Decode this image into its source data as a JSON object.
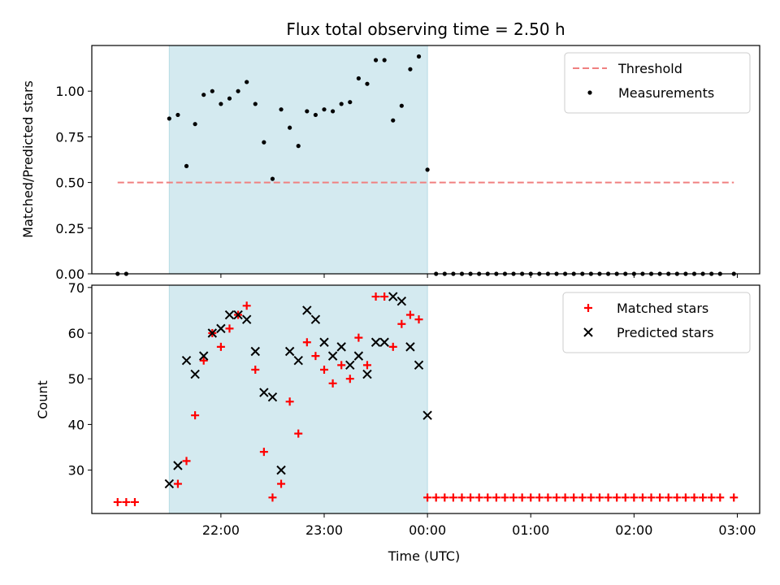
{
  "chart_data": {
    "title": "Flux total observing time = 2.50 h",
    "xlabel": "Time (UTC)",
    "x_tick_labels": [
      "22:00",
      "23:00",
      "00:00",
      "01:00",
      "02:00",
      "03:00"
    ],
    "x_tick_minutes": [
      1320,
      1380,
      1440,
      1500,
      1560,
      1620
    ],
    "xlim_minutes": [
      1245,
      1633
    ],
    "observing_window_minutes": [
      1290,
      1440
    ],
    "observing_window_color": "#d4eaf0",
    "charts": [
      {
        "type": "scatter",
        "ylabel": "Matched/Predicted stars",
        "ylim": [
          0,
          1.25
        ],
        "y_ticks": [
          0,
          0.25,
          0.5,
          0.75,
          1.0
        ],
        "y_tick_labels": [
          "0.00",
          "0.25",
          "0.50",
          "0.75",
          "1.00"
        ],
        "legend_position": "top-right",
        "threshold": {
          "name": "Threshold",
          "y": 0.5,
          "x_range_minutes": [
            1260,
            1618
          ],
          "color": "#f08080",
          "style": "dashed"
        },
        "series": [
          {
            "name": "Measurements",
            "marker": "dot",
            "color": "#000000",
            "x_minutes": [
              1260,
              1265,
              1290,
              1295,
              1300,
              1305,
              1310,
              1315,
              1320,
              1325,
              1330,
              1335,
              1340,
              1345,
              1350,
              1355,
              1360,
              1365,
              1370,
              1375,
              1380,
              1385,
              1390,
              1395,
              1400,
              1405,
              1410,
              1415,
              1420,
              1425,
              1430,
              1435,
              1440,
              1445,
              1450,
              1455,
              1460,
              1465,
              1470,
              1475,
              1480,
              1485,
              1490,
              1495,
              1500,
              1505,
              1510,
              1515,
              1520,
              1525,
              1530,
              1535,
              1540,
              1545,
              1550,
              1555,
              1560,
              1565,
              1570,
              1575,
              1580,
              1585,
              1590,
              1595,
              1600,
              1605,
              1610,
              1618
            ],
            "y": [
              0,
              0,
              0.85,
              0.87,
              0.59,
              0.82,
              0.98,
              1.0,
              0.93,
              0.96,
              1.0,
              1.05,
              0.93,
              0.72,
              0.52,
              0.9,
              0.8,
              0.7,
              0.89,
              0.87,
              0.9,
              0.89,
              0.93,
              0.94,
              1.07,
              1.04,
              1.17,
              1.17,
              0.84,
              0.92,
              1.12,
              1.19,
              0.57,
              0,
              0,
              0,
              0,
              0,
              0,
              0,
              0,
              0,
              0,
              0,
              0,
              0,
              0,
              0,
              0,
              0,
              0,
              0,
              0,
              0,
              0,
              0,
              0,
              0,
              0,
              0,
              0,
              0,
              0,
              0,
              0,
              0,
              0,
              0
            ]
          }
        ]
      },
      {
        "type": "scatter",
        "ylabel": "Count",
        "ylim": [
          20.5,
          70.5
        ],
        "y_ticks": [
          30,
          40,
          50,
          60,
          70
        ],
        "y_tick_labels": [
          "30",
          "40",
          "50",
          "60",
          "70"
        ],
        "legend_position": "top-right",
        "series": [
          {
            "name": "Matched stars",
            "marker": "plus",
            "color": "#ff0000",
            "x_minutes": [
              1260,
              1265,
              1270,
              1295,
              1300,
              1305,
              1310,
              1315,
              1320,
              1325,
              1330,
              1335,
              1340,
              1345,
              1350,
              1355,
              1360,
              1365,
              1370,
              1375,
              1380,
              1385,
              1390,
              1395,
              1400,
              1405,
              1410,
              1415,
              1420,
              1425,
              1430,
              1435,
              1440,
              1445,
              1450,
              1455,
              1460,
              1465,
              1470,
              1475,
              1480,
              1485,
              1490,
              1495,
              1500,
              1505,
              1510,
              1515,
              1520,
              1525,
              1530,
              1535,
              1540,
              1545,
              1550,
              1555,
              1560,
              1565,
              1570,
              1575,
              1580,
              1585,
              1590,
              1595,
              1600,
              1605,
              1610,
              1618
            ],
            "y": [
              23,
              23,
              23,
              27,
              32,
              42,
              54,
              60,
              57,
              61,
              64,
              66,
              52,
              34,
              24,
              27,
              45,
              38,
              58,
              55,
              52,
              49,
              53,
              50,
              59,
              53,
              68,
              68,
              57,
              62,
              64,
              63,
              24,
              24,
              24,
              24,
              24,
              24,
              24,
              24,
              24,
              24,
              24,
              24,
              24,
              24,
              24,
              24,
              24,
              24,
              24,
              24,
              24,
              24,
              24,
              24,
              24,
              24,
              24,
              24,
              24,
              24,
              24,
              24,
              24,
              24,
              24,
              24
            ]
          },
          {
            "name": "Predicted stars",
            "marker": "x",
            "color": "#000000",
            "x_minutes": [
              1290,
              1295,
              1300,
              1305,
              1310,
              1315,
              1320,
              1325,
              1330,
              1335,
              1340,
              1345,
              1350,
              1355,
              1360,
              1365,
              1370,
              1375,
              1380,
              1385,
              1390,
              1395,
              1400,
              1405,
              1410,
              1415,
              1420,
              1425,
              1430,
              1435,
              1440
            ],
            "y": [
              27,
              31,
              54,
              51,
              55,
              60,
              61,
              64,
              64,
              63,
              56,
              47,
              46,
              30,
              56,
              54,
              65,
              63,
              58,
              55,
              57,
              53,
              55,
              51,
              58,
              58,
              68,
              67,
              57,
              53,
              42
            ]
          }
        ]
      }
    ]
  }
}
